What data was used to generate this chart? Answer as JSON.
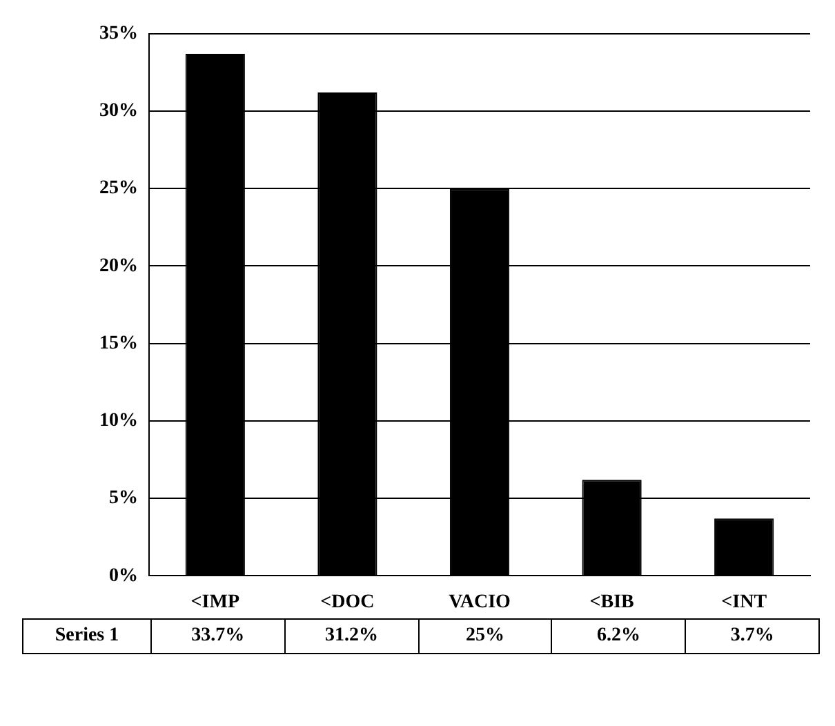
{
  "chart_data": {
    "type": "bar",
    "categories": [
      "<IMP",
      "<DOC",
      "VACIO",
      "<BIB",
      "<INT"
    ],
    "series": [
      {
        "name": "Series 1",
        "color": "#000000",
        "values": [
          33.7,
          31.2,
          25,
          6.2,
          3.7
        ],
        "value_labels": [
          "33.7%",
          "31.2%",
          "25%",
          "6.2%",
          "3.7%"
        ]
      }
    ],
    "ylim": [
      0,
      35
    ],
    "yticks": [
      {
        "value": 0,
        "label": "0%"
      },
      {
        "value": 5,
        "label": "5%"
      },
      {
        "value": 10,
        "label": "10%"
      },
      {
        "value": 15,
        "label": "15%"
      },
      {
        "value": 20,
        "label": "20%"
      },
      {
        "value": 25,
        "label": "25%"
      },
      {
        "value": 30,
        "label": "30%"
      },
      {
        "value": 35,
        "label": "35%"
      }
    ],
    "grid": "y",
    "legend": false
  }
}
